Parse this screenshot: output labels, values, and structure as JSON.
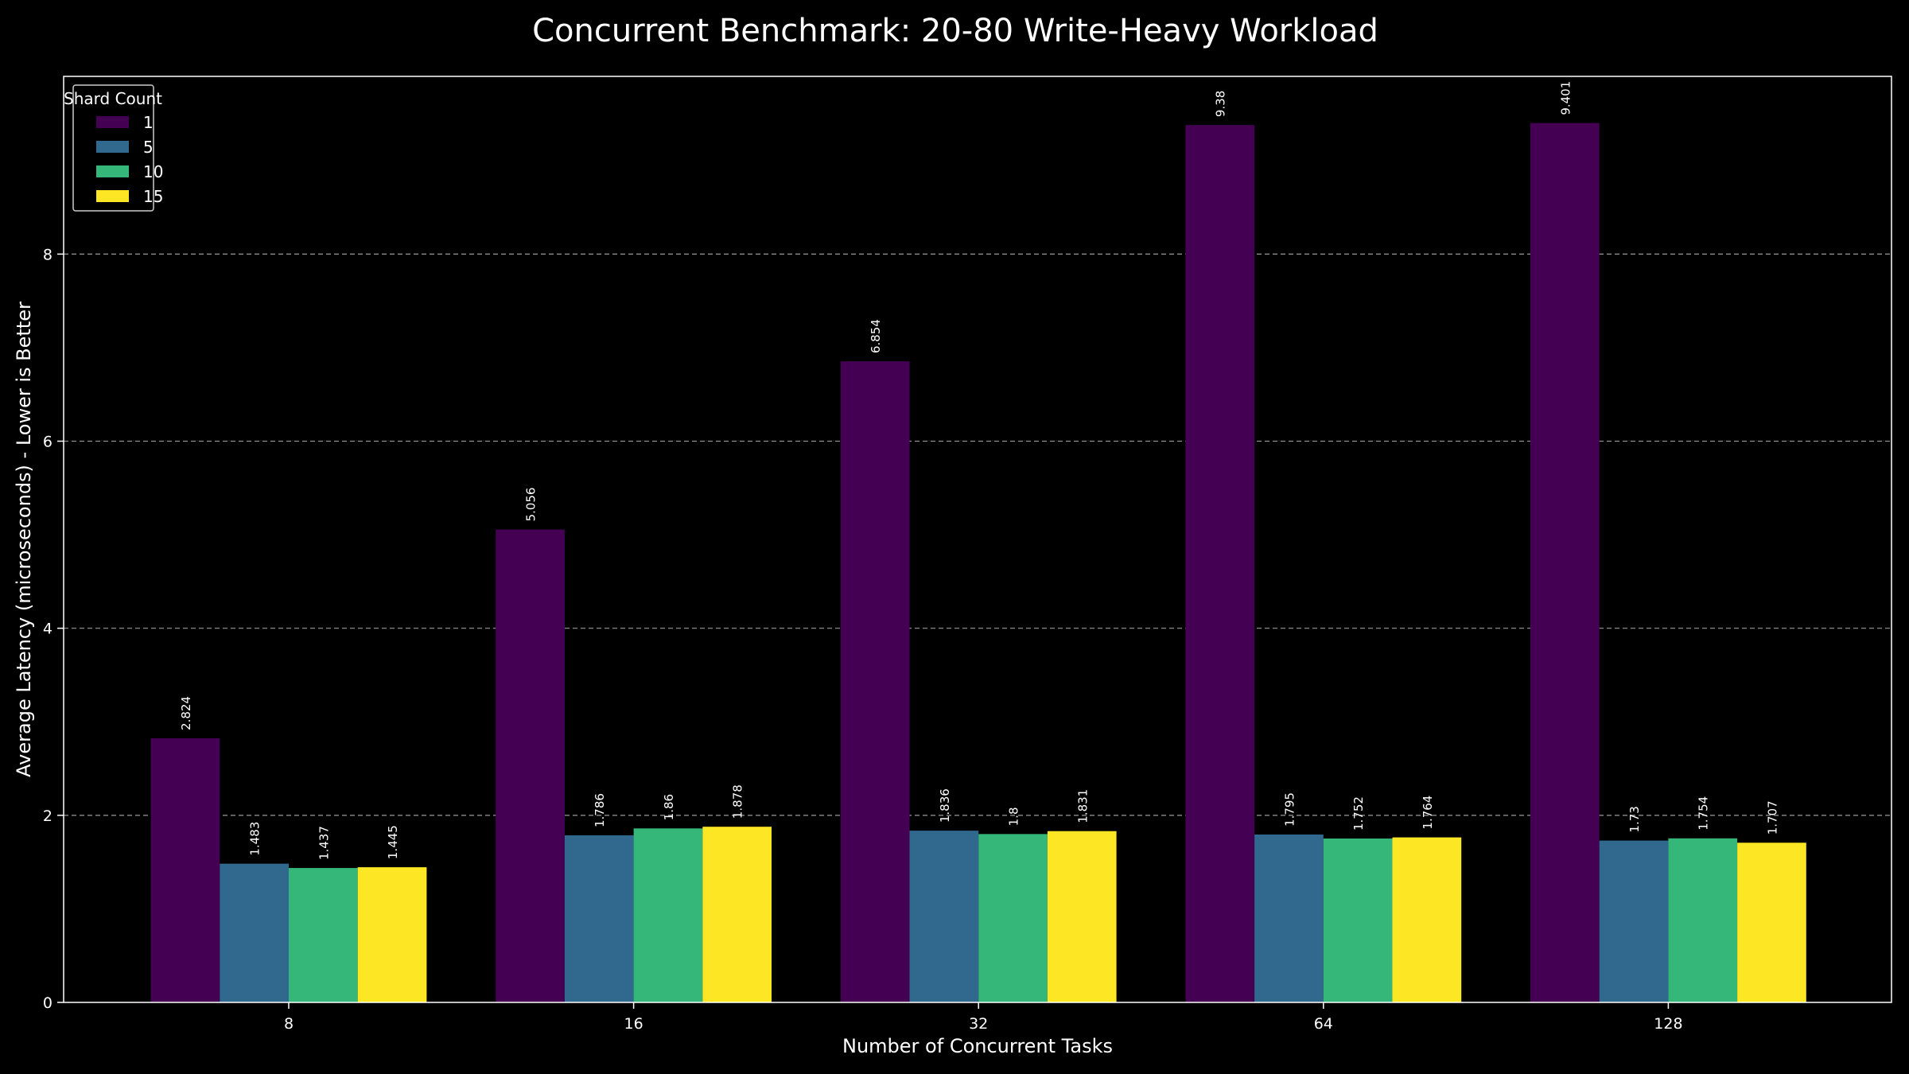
{
  "chart_data": {
    "type": "bar",
    "title": "Concurrent Benchmark: 20-80 Write-Heavy Workload",
    "xlabel": "Number of Concurrent Tasks",
    "ylabel": "Average Latency (microseconds) - Lower is Better",
    "categories": [
      "8",
      "16",
      "32",
      "64",
      "128"
    ],
    "ylim": [
      0,
      9.9
    ],
    "yticks": [
      0,
      2,
      4,
      6,
      8
    ],
    "grid": "y-dashed",
    "legend": {
      "title": "Shard Count",
      "placement": "top-left"
    },
    "series": [
      {
        "name": "1",
        "color": "#440154",
        "values": [
          2.824,
          5.056,
          6.854,
          9.38,
          9.401
        ]
      },
      {
        "name": "5",
        "color": "#31688e",
        "values": [
          1.483,
          1.786,
          1.836,
          1.795,
          1.73
        ]
      },
      {
        "name": "10",
        "color": "#35b779",
        "values": [
          1.437,
          1.86,
          1.8,
          1.752,
          1.754
        ]
      },
      {
        "name": "15",
        "color": "#fde725",
        "values": [
          1.445,
          1.878,
          1.831,
          1.764,
          1.707
        ]
      }
    ]
  }
}
